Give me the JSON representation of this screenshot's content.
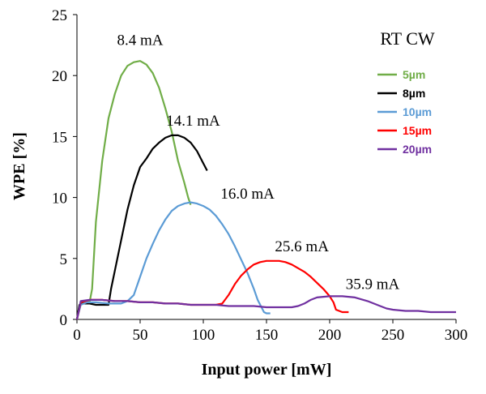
{
  "chart_data": {
    "type": "line",
    "title": "",
    "xlabel": "Input power [mW]",
    "ylabel": "WPE [%]",
    "xlim": [
      0,
      300
    ],
    "ylim": [
      0,
      25
    ],
    "xticks": [
      0,
      50,
      100,
      150,
      200,
      250,
      300
    ],
    "yticks": [
      0,
      5,
      10,
      15,
      20,
      25
    ],
    "grid": false,
    "corner_label": "RT CW",
    "legend_position": "right",
    "series": [
      {
        "name": "5µm",
        "color": "#70ad47",
        "x": [
          0,
          2,
          5,
          8,
          10,
          12,
          15,
          20,
          25,
          30,
          35,
          40,
          45,
          50,
          55,
          60,
          65,
          70,
          75,
          80,
          85,
          88,
          90
        ],
        "y": [
          0,
          1.2,
          1.4,
          1.5,
          1.4,
          2.5,
          8,
          13,
          16.5,
          18.5,
          20,
          20.8,
          21.1,
          21.2,
          20.9,
          20.2,
          19,
          17.3,
          15.4,
          13,
          11.2,
          10,
          9.4
        ]
      },
      {
        "name": "8µm",
        "color": "#000000",
        "x": [
          0,
          2,
          5,
          10,
          15,
          20,
          25,
          27,
          30,
          35,
          40,
          45,
          50,
          55,
          60,
          65,
          70,
          75,
          80,
          85,
          90,
          95,
          100,
          103
        ],
        "y": [
          0,
          1.2,
          1.3,
          1.3,
          1.2,
          1.2,
          1.2,
          2.5,
          4,
          6.5,
          9,
          11,
          12.5,
          13.2,
          14,
          14.5,
          14.9,
          15.1,
          15.1,
          14.9,
          14.5,
          13.8,
          12.8,
          12.2
        ]
      },
      {
        "name": "10µm",
        "color": "#5b9bd5",
        "x": [
          0,
          3,
          8,
          15,
          25,
          35,
          40,
          45,
          50,
          55,
          60,
          65,
          70,
          75,
          80,
          85,
          90,
          95,
          100,
          105,
          110,
          115,
          120,
          125,
          130,
          135,
          140,
          143,
          146,
          148,
          150,
          153
        ],
        "y": [
          0,
          1.2,
          1.4,
          1.4,
          1.3,
          1.3,
          1.5,
          2,
          3.5,
          5,
          6.2,
          7.3,
          8.2,
          8.9,
          9.3,
          9.5,
          9.6,
          9.5,
          9.3,
          9,
          8.5,
          7.8,
          7,
          6,
          4.9,
          3.8,
          2.5,
          1.6,
          1,
          0.6,
          0.5,
          0.5
        ]
      },
      {
        "name": "15µm",
        "color": "#ff0000",
        "x": [
          0,
          3,
          10,
          20,
          30,
          40,
          50,
          60,
          70,
          80,
          90,
          100,
          110,
          115,
          120,
          125,
          130,
          135,
          140,
          145,
          150,
          155,
          160,
          165,
          170,
          175,
          180,
          185,
          190,
          195,
          200,
          203,
          205,
          210,
          215
        ],
        "y": [
          0,
          1.4,
          1.6,
          1.6,
          1.5,
          1.5,
          1.4,
          1.4,
          1.3,
          1.3,
          1.2,
          1.2,
          1.2,
          1.3,
          2,
          2.9,
          3.6,
          4.1,
          4.5,
          4.7,
          4.8,
          4.8,
          4.8,
          4.7,
          4.5,
          4.2,
          3.9,
          3.5,
          3.0,
          2.5,
          1.9,
          1.4,
          0.8,
          0.6,
          0.6
        ]
      },
      {
        "name": "20µm",
        "color": "#7030a0",
        "x": [
          0,
          3,
          10,
          20,
          30,
          40,
          50,
          60,
          70,
          80,
          90,
          100,
          110,
          120,
          130,
          140,
          150,
          160,
          170,
          175,
          180,
          185,
          190,
          200,
          210,
          220,
          230,
          240,
          245,
          250,
          260,
          270,
          280,
          290,
          300
        ],
        "y": [
          0,
          1.5,
          1.6,
          1.6,
          1.5,
          1.5,
          1.4,
          1.4,
          1.3,
          1.3,
          1.2,
          1.2,
          1.2,
          1.1,
          1.1,
          1.1,
          1.0,
          1.0,
          1.0,
          1.1,
          1.3,
          1.6,
          1.8,
          1.9,
          1.9,
          1.8,
          1.5,
          1.1,
          0.9,
          0.8,
          0.7,
          0.7,
          0.6,
          0.6,
          0.6
        ]
      }
    ],
    "annotations": [
      {
        "text": "8.4 mA",
        "x": 50,
        "y": 22.5
      },
      {
        "text": "14.1 mA",
        "x": 92,
        "y": 15.9
      },
      {
        "text": "16.0 mA",
        "x": 135,
        "y": 9.9
      },
      {
        "text": "25.6 mA",
        "x": 178,
        "y": 5.6
      },
      {
        "text": "35.9 mA",
        "x": 234,
        "y": 2.5
      }
    ]
  }
}
